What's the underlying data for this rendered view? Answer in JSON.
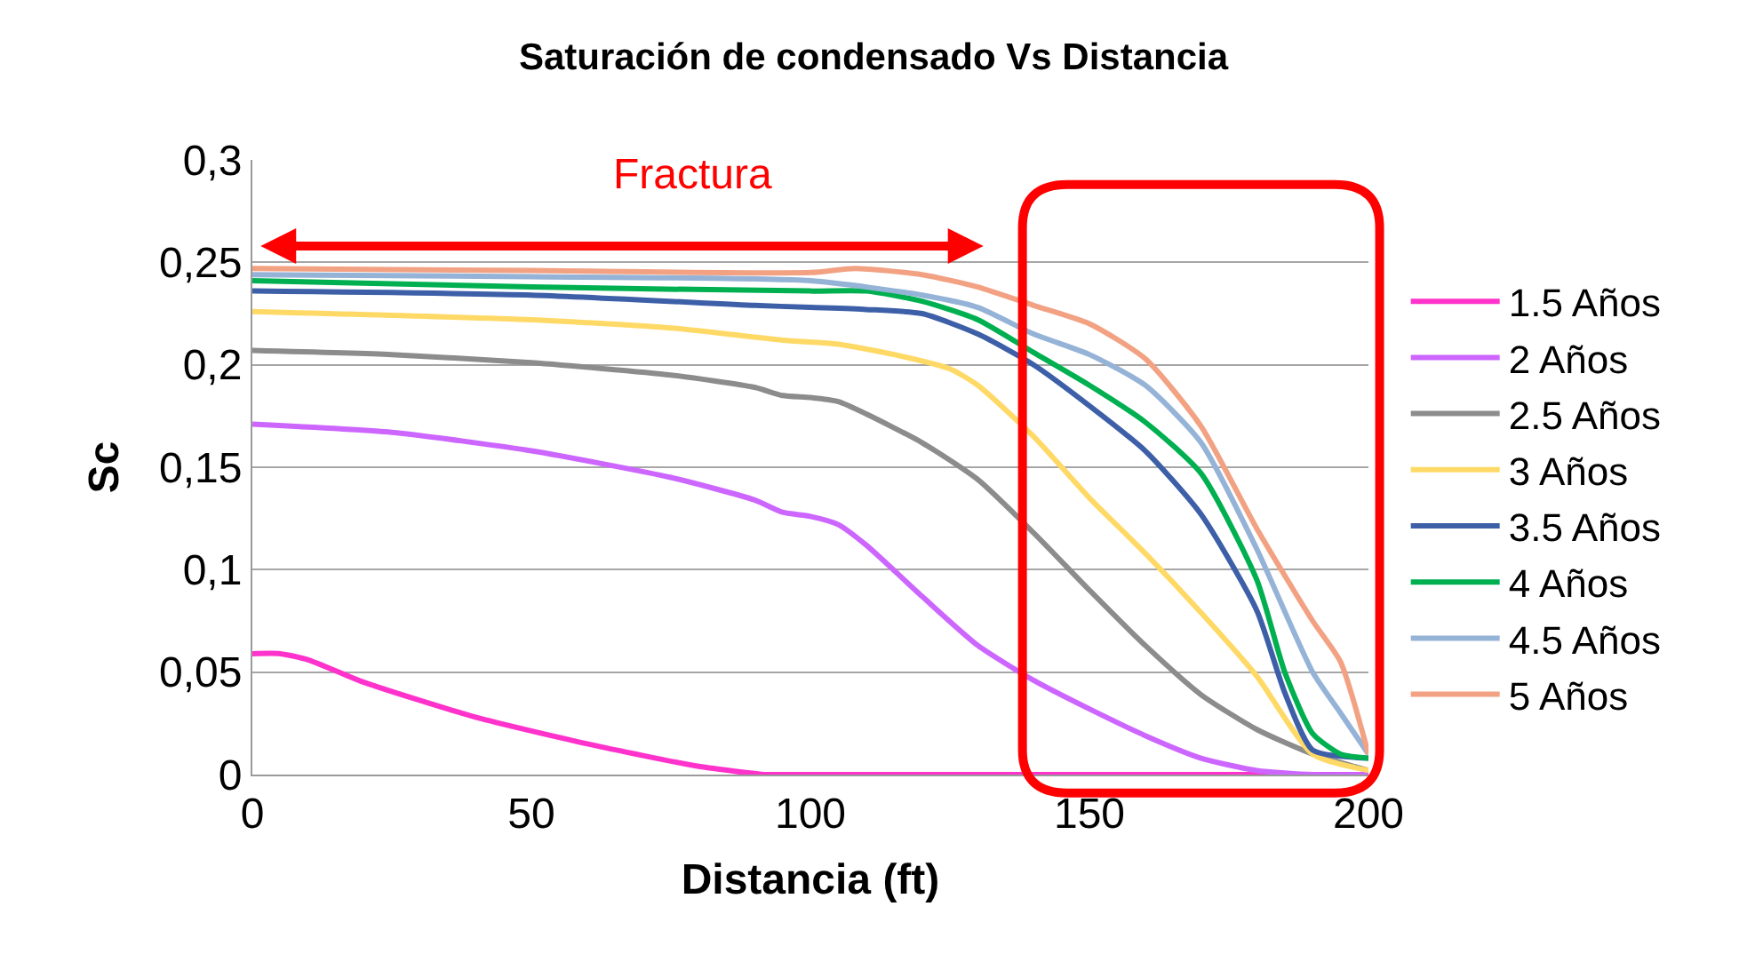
{
  "chart_data": {
    "type": "line",
    "title": "Saturación de condensado Vs Distancia",
    "xlabel": "Distancia (ft)",
    "ylabel": "Sc",
    "xlim": [
      0,
      200
    ],
    "xticks": [
      0,
      50,
      100,
      150,
      200
    ],
    "ylim": [
      0,
      0.3
    ],
    "yticks": [
      {
        "value": 0,
        "label": "0"
      },
      {
        "value": 0.05,
        "label": "0,05"
      },
      {
        "value": 0.1,
        "label": "0,1"
      },
      {
        "value": 0.15,
        "label": "0,15"
      },
      {
        "value": 0.2,
        "label": "0,2"
      },
      {
        "value": 0.25,
        "label": "0,25"
      },
      {
        "value": 0.3,
        "label": "0,3"
      }
    ],
    "grid": "y",
    "legend": "right",
    "marker": "none",
    "line_style": "solid",
    "annotations": [
      "Fractura"
    ],
    "series": [
      {
        "name": "1.5 Años",
        "color": "#ff33cc",
        "x": [
          0,
          5,
          10,
          20,
          40,
          60,
          80,
          92,
          95,
          200
        ],
        "values": [
          0.059,
          0.059,
          0.056,
          0.045,
          0.028,
          0.015,
          0.004,
          0.0,
          0.0,
          0.0
        ]
      },
      {
        "name": "2 Años",
        "color": "#cc66ff",
        "x": [
          0,
          25,
          50,
          75,
          90,
          95,
          100,
          105,
          110,
          120,
          130,
          140,
          150,
          160,
          170,
          180,
          190,
          200
        ],
        "values": [
          0.171,
          0.167,
          0.158,
          0.145,
          0.134,
          0.128,
          0.126,
          0.122,
          0.112,
          0.087,
          0.063,
          0.046,
          0.032,
          0.019,
          0.008,
          0.002,
          0.0,
          0.0
        ]
      },
      {
        "name": "2.5 Años",
        "color": "#8c8c8c",
        "x": [
          0,
          25,
          50,
          75,
          90,
          95,
          100,
          105,
          110,
          120,
          130,
          140,
          150,
          160,
          170,
          180,
          190,
          200
        ],
        "values": [
          0.207,
          0.205,
          0.201,
          0.195,
          0.189,
          0.185,
          0.184,
          0.182,
          0.176,
          0.162,
          0.144,
          0.118,
          0.09,
          0.063,
          0.039,
          0.022,
          0.01,
          0.002
        ]
      },
      {
        "name": "3 Años",
        "color": "#ffd966",
        "x": [
          0,
          50,
          75,
          95,
          105,
          115,
          125,
          130,
          140,
          150,
          160,
          170,
          180,
          190,
          200
        ],
        "values": [
          0.226,
          0.222,
          0.218,
          0.212,
          0.21,
          0.205,
          0.198,
          0.19,
          0.165,
          0.135,
          0.108,
          0.079,
          0.048,
          0.01,
          0.002
        ]
      },
      {
        "name": "3.5 Años",
        "color": "#3d5fa8",
        "x": [
          0,
          50,
          90,
          100,
          110,
          120,
          130,
          140,
          150,
          160,
          170,
          180,
          185,
          190,
          200
        ],
        "values": [
          0.236,
          0.234,
          0.229,
          0.228,
          0.227,
          0.225,
          0.215,
          0.2,
          0.18,
          0.158,
          0.127,
          0.08,
          0.04,
          0.012,
          0.008
        ]
      },
      {
        "name": "4 Años",
        "color": "#00b050",
        "x": [
          0,
          50,
          100,
          110,
          120,
          130,
          140,
          150,
          160,
          170,
          180,
          185,
          190,
          195,
          200
        ],
        "values": [
          0.241,
          0.238,
          0.236,
          0.236,
          0.231,
          0.222,
          0.206,
          0.19,
          0.172,
          0.147,
          0.095,
          0.05,
          0.02,
          0.01,
          0.008
        ]
      },
      {
        "name": "4.5 Años",
        "color": "#95b3d7",
        "x": [
          0,
          50,
          100,
          120,
          130,
          140,
          150,
          160,
          170,
          180,
          190,
          195,
          200
        ],
        "values": [
          0.244,
          0.243,
          0.241,
          0.234,
          0.228,
          0.215,
          0.205,
          0.19,
          0.162,
          0.11,
          0.05,
          0.03,
          0.01
        ]
      },
      {
        "name": "5 Años",
        "color": "#f2a283",
        "x": [
          0,
          50,
          100,
          108,
          120,
          130,
          140,
          150,
          160,
          170,
          180,
          190,
          195,
          200
        ],
        "values": [
          0.247,
          0.246,
          0.245,
          0.247,
          0.244,
          0.238,
          0.229,
          0.22,
          0.203,
          0.17,
          0.12,
          0.075,
          0.055,
          0.01
        ]
      }
    ]
  }
}
